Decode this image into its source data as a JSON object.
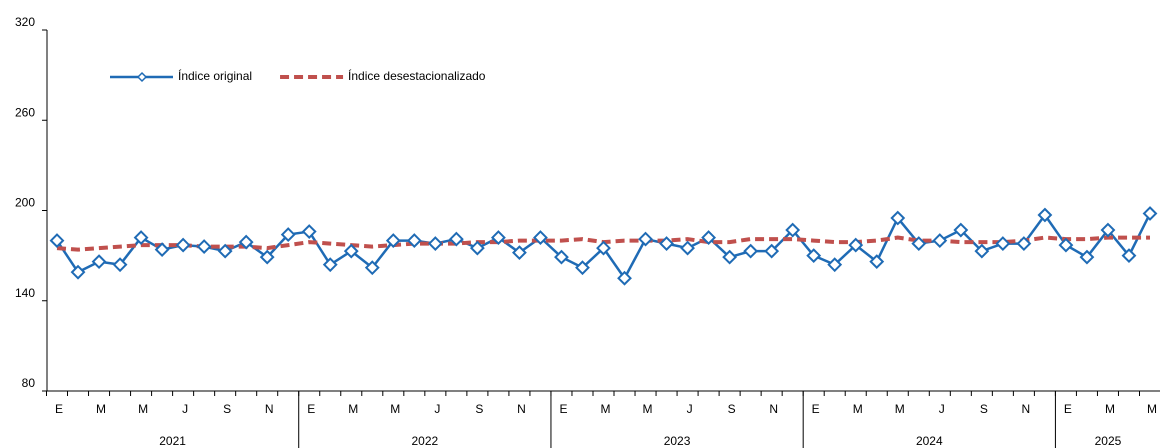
{
  "chart_data": {
    "type": "line",
    "categories": [
      "E",
      null,
      "M",
      null,
      "M",
      null,
      "J",
      null,
      "S",
      null,
      "N",
      null,
      "E",
      null,
      "M",
      null,
      "M",
      null,
      "J",
      null,
      "S",
      null,
      "N",
      null,
      "E",
      null,
      "M",
      null,
      "M",
      null,
      "J",
      null,
      "S",
      null,
      "N",
      null,
      "E",
      null,
      "M",
      null,
      "M",
      null,
      "J",
      null,
      "S",
      null,
      "N",
      null,
      "E",
      null,
      "M",
      null,
      "M"
    ],
    "years": [
      "2021",
      "2022",
      "2023",
      "2024",
      "2025"
    ],
    "series": [
      {
        "name": "Índice original",
        "color": "#1f6bb5",
        "marker": "diamond",
        "values": [
          180,
          159,
          166,
          164,
          182,
          174,
          177,
          176,
          173,
          179,
          169,
          184,
          186,
          164,
          173,
          162,
          180,
          180,
          178,
          181,
          175,
          182,
          172,
          182,
          169,
          162,
          175,
          155,
          181,
          178,
          175,
          182,
          169,
          173,
          173,
          187,
          170,
          164,
          177,
          166,
          195,
          178,
          180,
          187,
          173,
          178,
          178,
          197,
          177,
          169,
          187,
          170,
          198
        ]
      },
      {
        "name": "Índice desestacionalizado",
        "color": "#c0504d",
        "dashed": true,
        "values": [
          175,
          174,
          175,
          176,
          177,
          177,
          177,
          176,
          176,
          176,
          175,
          177,
          179,
          178,
          177,
          176,
          177,
          178,
          178,
          178,
          179,
          179,
          180,
          180,
          180,
          181,
          179,
          180,
          180,
          180,
          181,
          179,
          179,
          181,
          181,
          181,
          180,
          179,
          179,
          180,
          182,
          180,
          180,
          179,
          179,
          179,
          180,
          182,
          181,
          181,
          182,
          182,
          182
        ]
      }
    ],
    "ylim": [
      80,
      320
    ],
    "yticks": [
      80,
      140,
      200,
      260,
      320
    ],
    "legend": "top-left"
  }
}
